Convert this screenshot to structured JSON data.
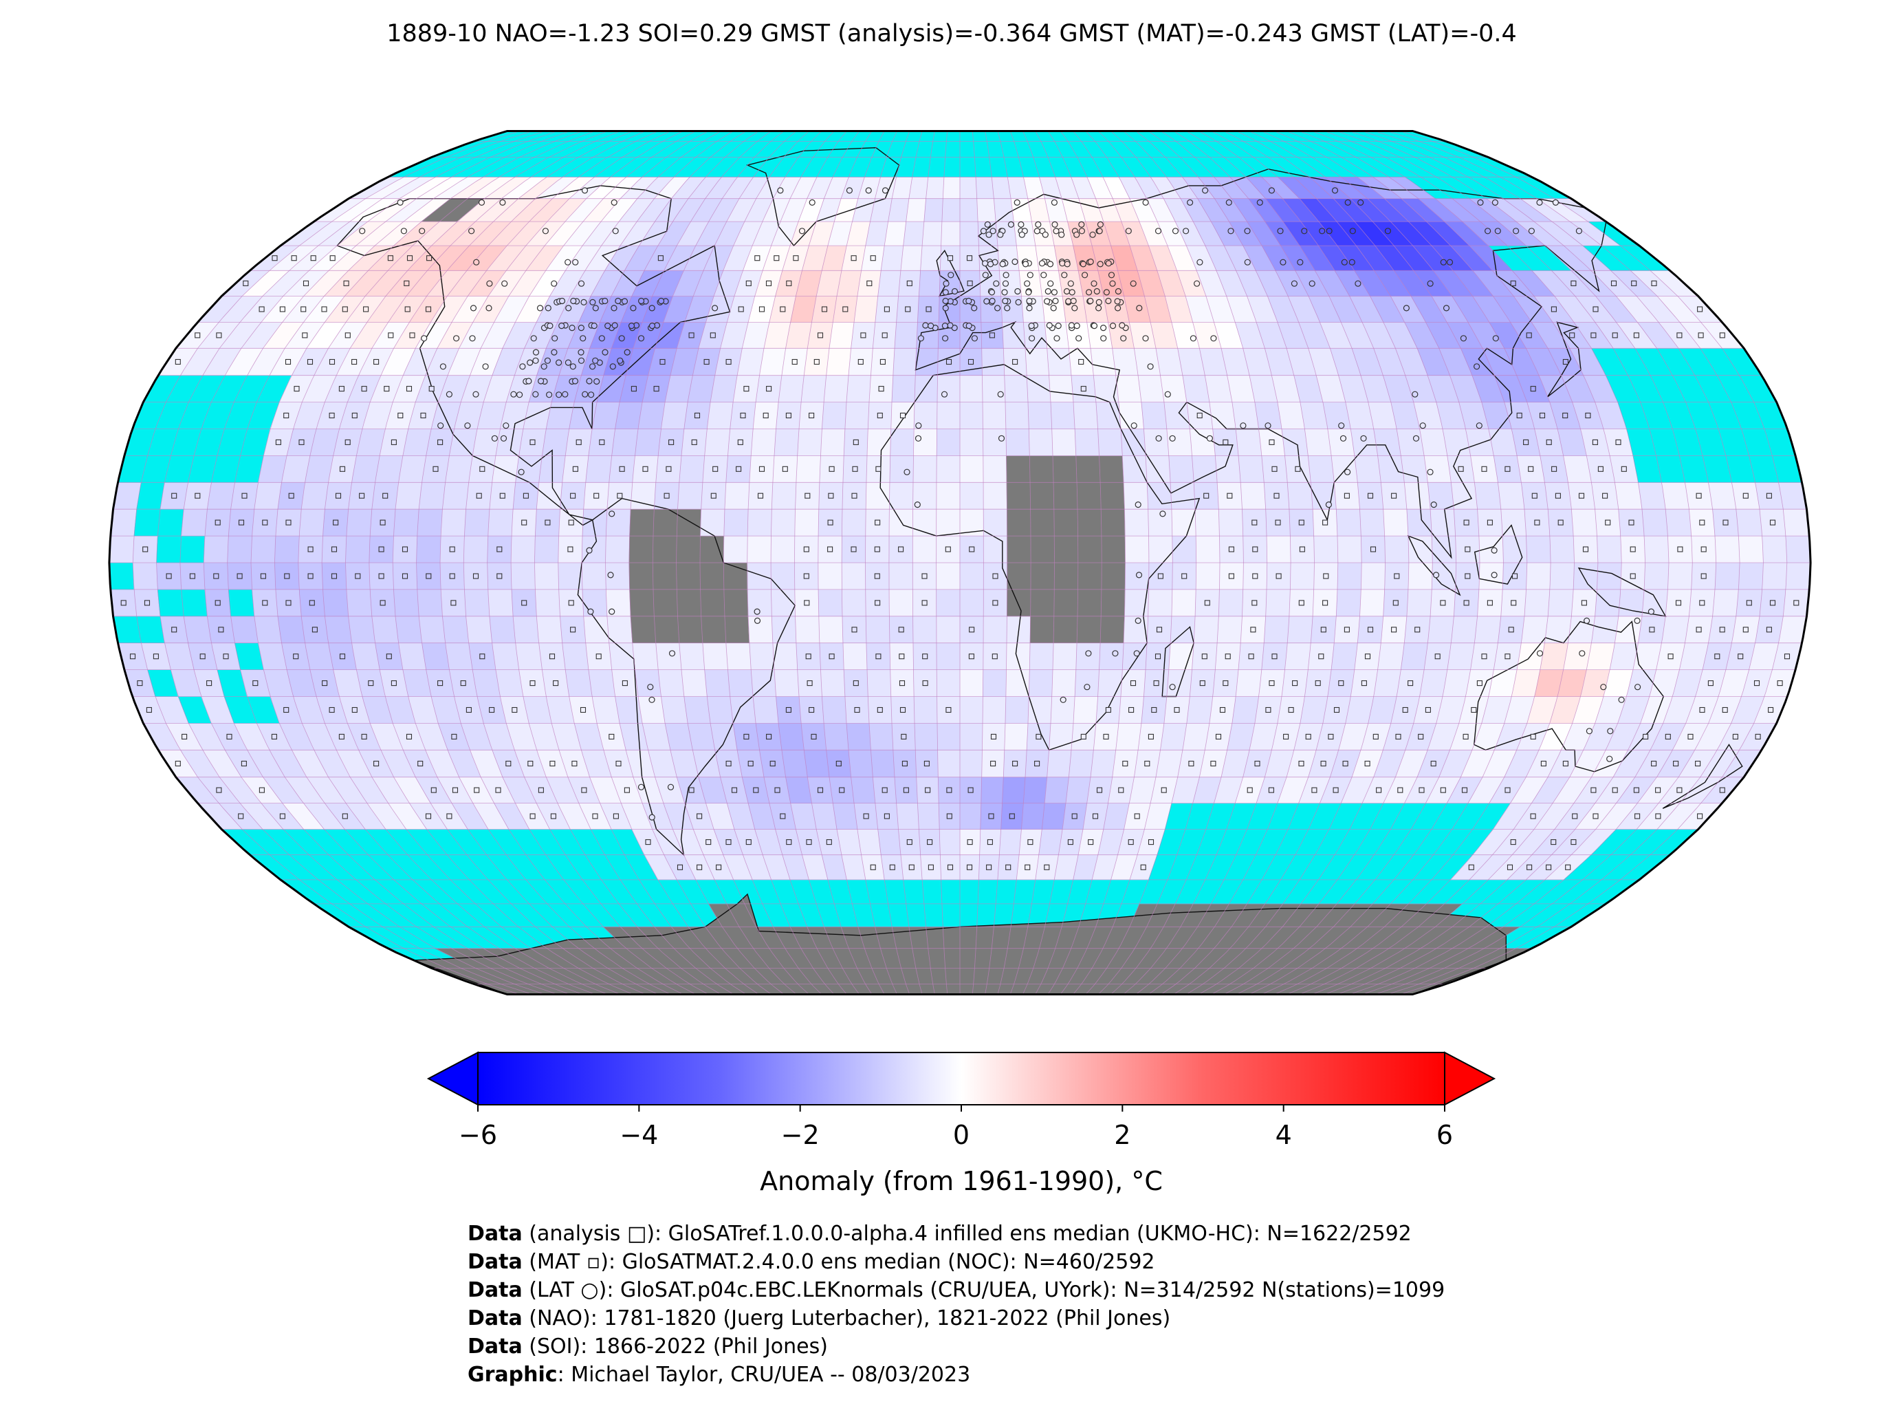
{
  "title": "1889-10 NAO=-1.23 SOI=0.29 GMST (analysis)=-0.364 GMST (MAT)=-0.243 GMST (LAT)=-0.4",
  "colors": {
    "ocean_missing": "#00f0f0",
    "land_missing": "#7a7a7a",
    "grid_line": "#c080c0",
    "coast": "#111111",
    "cold_max": "#0000ff",
    "neutral": "#ffffff",
    "warm_max": "#ff0000"
  },
  "map": {
    "projection": "robinson",
    "central_longitude": 0,
    "grid_resolution_deg": 5,
    "symbols": {
      "analysis": "square-open",
      "mat": "square-small",
      "lat": "circle-open"
    },
    "anomaly_regions": [
      {
        "name": "north-america-warm",
        "lon": [
          -165,
          -95
        ],
        "lat": [
          40,
          75
        ],
        "value": 1.6
      },
      {
        "name": "eastern-us-cold",
        "lon": [
          -95,
          -55
        ],
        "lat": [
          25,
          60
        ],
        "value": -2.2
      },
      {
        "name": "north-atlantic-warm",
        "lon": [
          -55,
          -20
        ],
        "lat": [
          35,
          65
        ],
        "value": 1.5
      },
      {
        "name": "western-europe-cold",
        "lon": [
          -15,
          15
        ],
        "lat": [
          35,
          55
        ],
        "value": -1.4
      },
      {
        "name": "eastern-europe-warm",
        "lon": [
          20,
          60
        ],
        "lat": [
          40,
          70
        ],
        "value": 2.2
      },
      {
        "name": "siberia-cold",
        "lon": [
          75,
          150
        ],
        "lat": [
          50,
          75
        ],
        "value": -4.4
      },
      {
        "name": "east-asia-cold",
        "lon": [
          100,
          150
        ],
        "lat": [
          25,
          50
        ],
        "value": -1.6
      },
      {
        "name": "south-atlantic-cold",
        "lon": [
          -60,
          -10
        ],
        "lat": [
          -50,
          -25
        ],
        "value": -1.4
      },
      {
        "name": "south-indian-cold",
        "lon": [
          0,
          30
        ],
        "lat": [
          -50,
          -40
        ],
        "value": -2.2
      },
      {
        "name": "australia-warm",
        "lon": [
          120,
          140
        ],
        "lat": [
          -30,
          -15
        ],
        "value": 1.7
      },
      {
        "name": "pacific-tropics-cold",
        "lon": [
          -180,
          -90
        ],
        "lat": [
          -30,
          20
        ],
        "value": -0.9
      }
    ]
  },
  "colorbar": {
    "vmin": -6,
    "vmax": 6,
    "extend": "both",
    "ticks": [
      "−6",
      "−4",
      "−2",
      "0",
      "2",
      "4",
      "6"
    ],
    "label": "Anomaly (from 1961-1990), °C"
  },
  "credits": [
    {
      "bold": "Data",
      "text": " (analysis □): GloSATref.1.0.0.0-alpha.4 infilled ens median (UKMO-HC): N=1622/2592"
    },
    {
      "bold": "Data",
      "text": " (MAT ▫): GloSATMAT.2.4.0.0 ens median (NOC): N=460/2592"
    },
    {
      "bold": "Data",
      "text": " (LAT ○): GloSAT.p04c.EBC.LEKnormals (CRU/UEA, UYork): N=314/2592 N(stations)=1099"
    },
    {
      "bold": "Data",
      "text": " (NAO): 1781-1820 (Juerg Luterbacher), 1821-2022 (Phil Jones)"
    },
    {
      "bold": "Data",
      "text": " (SOI): 1866-2022 (Phil Jones)"
    },
    {
      "bold": "Graphic",
      "text": ": Michael Taylor, CRU/UEA -- 08/03/2023"
    }
  ]
}
